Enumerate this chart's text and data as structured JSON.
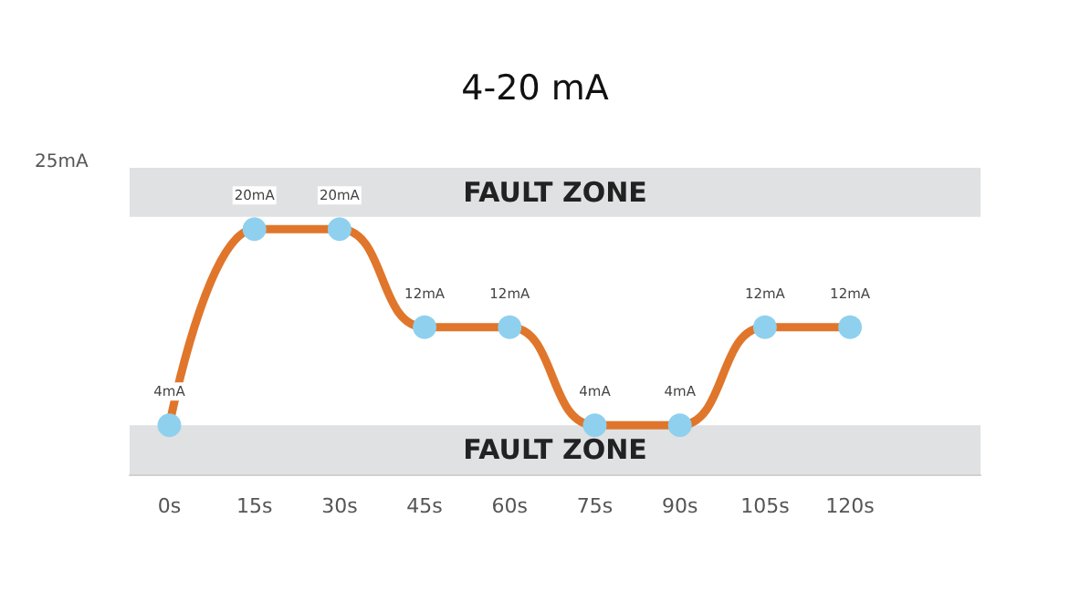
{
  "chart_data": {
    "type": "line",
    "title": "4-20 mA",
    "x": [
      0,
      15,
      30,
      45,
      60,
      75,
      90,
      105,
      120
    ],
    "series": [
      {
        "color": "#e0762b",
        "colors": [
          "#8fd0ee",
          "#8fd0ee",
          "#8fd0ee",
          "#8fd0ee",
          "#8fd0ee",
          "#8fd0ee",
          "#8fd0ee",
          "#8fd0ee",
          "#8fd0ee"
        ],
        "values": [
          4,
          20,
          20,
          12,
          12,
          4,
          4,
          12,
          12
        ],
        "value_labels": [
          "4mA",
          "20mA",
          "20mA",
          "12mA",
          "12mA",
          "4mA",
          "4mA",
          "12mA",
          "12mA"
        ]
      }
    ],
    "xlim": [
      -7,
      143
    ],
    "xticks": [
      {
        "value": 0,
        "label": "0s"
      },
      {
        "value": 15,
        "label": "15s"
      },
      {
        "value": 30,
        "label": "30s"
      },
      {
        "value": 45,
        "label": "45s"
      },
      {
        "value": 60,
        "label": "60s"
      },
      {
        "value": 75,
        "label": "75s"
      },
      {
        "value": 90,
        "label": "90s"
      },
      {
        "value": 105,
        "label": "105s"
      },
      {
        "value": 120,
        "label": "120s"
      }
    ],
    "bands": [
      {
        "axis": "y",
        "from": 21,
        "to": 25,
        "label": "FAULT ZONE",
        "color": "#dfe1e3"
      },
      {
        "axis": "y",
        "from": 0,
        "to": 4,
        "label": "FAULT ZONE",
        "color": "#dfe1e3"
      }
    ],
    "annotations": [
      "25mA"
    ],
    "grid": false,
    "marker": "circle",
    "line_style": "solid"
  }
}
